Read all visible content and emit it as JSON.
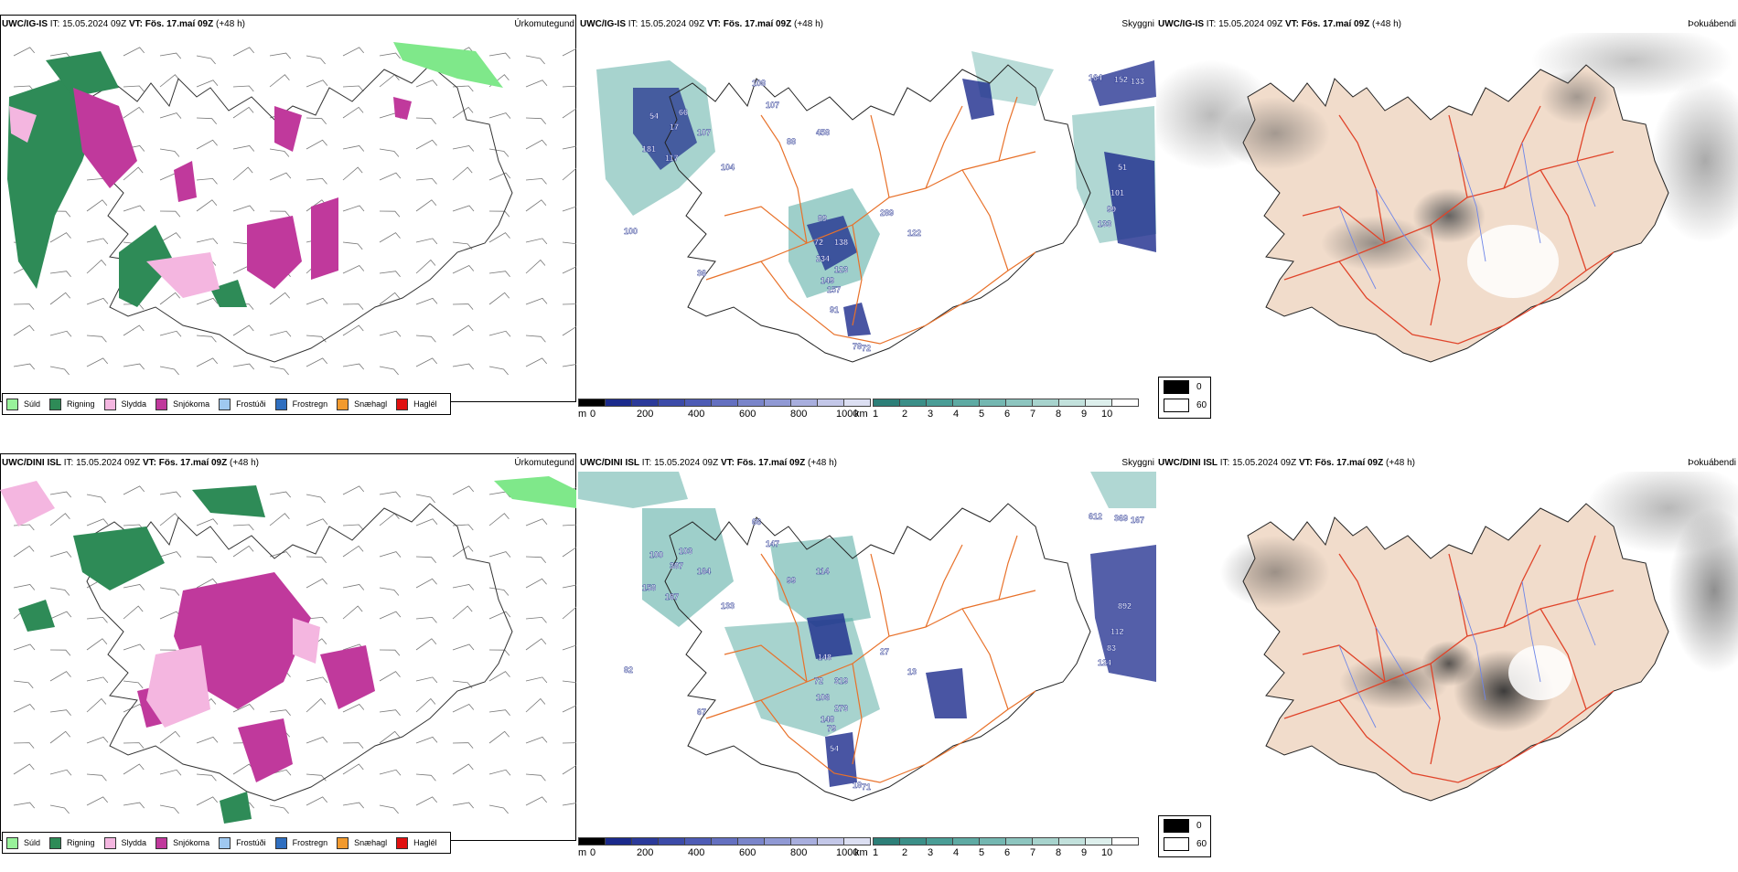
{
  "rows": [
    {
      "panels": {
        "precip": {
          "model": "UWC/IG-IS",
          "it_label": "IT:",
          "it_value": "15.05.2024 09Z",
          "vt_label": "VT:",
          "vt_value": "Fös. 17.maí 09Z",
          "lead": "(+48 h)",
          "title": "Úrkomutegund"
        },
        "clouds": {
          "model": "UWC/IG-IS",
          "it_label": "IT:",
          "it_value": "15.05.2024 09Z",
          "vt_label": "VT:",
          "vt_value": "Fös. 17.maí 09Z",
          "lead": "(+48 h)",
          "title": "Skyggni",
          "labels": [
            "108",
            "164",
            "152",
            "133",
            "107",
            "54",
            "66",
            "17",
            "107",
            "181",
            "117",
            "88",
            "458",
            "104",
            "51",
            "101",
            "99",
            "133",
            "89",
            "72",
            "289",
            "138",
            "234",
            "123",
            "149",
            "157",
            "91",
            "78",
            "72",
            "122",
            "100",
            "36"
          ]
        },
        "fog": {
          "model": "UWC/IG-IS",
          "it_label": "IT:",
          "it_value": "15.05.2024 09Z",
          "vt_label": "VT:",
          "vt_value": "Fös. 17.maí 09Z",
          "lead": "(+48 h)",
          "title": "Þokuábendi"
        }
      }
    },
    {
      "panels": {
        "precip": {
          "model": "UWC/DINI ISL",
          "it_label": "IT:",
          "it_value": "15.05.2024 09Z",
          "vt_label": "VT:",
          "vt_value": "Fös. 17.maí 09Z",
          "lead": "(+48 h)",
          "title": "Úrkomutegund"
        },
        "clouds": {
          "model": "UWC/DINI ISL",
          "it_label": "IT:",
          "it_value": "15.05.2024 09Z",
          "vt_label": "VT:",
          "vt_value": "Fös. 17.maí 09Z",
          "lead": "(+48 h)",
          "title": "Skyggni",
          "labels": [
            "66",
            "612",
            "369",
            "167",
            "147",
            "100",
            "103",
            "387",
            "164",
            "158",
            "187",
            "99",
            "114",
            "133",
            "892",
            "112",
            "83",
            "124",
            "148",
            "72",
            "27",
            "319",
            "106",
            "273",
            "148",
            "79",
            "54",
            "18",
            "71",
            "13",
            "82",
            "67"
          ]
        },
        "fog": {
          "model": "UWC/DINI ISL",
          "it_label": "IT:",
          "it_value": "15.05.2024 09Z",
          "vt_label": "VT:",
          "vt_value": "Fös. 17.maí 09Z",
          "lead": "(+48 h)",
          "title": "Þokuábendi"
        }
      }
    }
  ],
  "precip_legend": [
    {
      "label": "Súld",
      "color": "#98f29a"
    },
    {
      "label": "Rigning",
      "color": "#2e8b57"
    },
    {
      "label": "Slydda",
      "color": "#f4b6e0"
    },
    {
      "label": "Snjókoma",
      "color": "#c0399c"
    },
    {
      "label": "Frostúði",
      "color": "#9fc8f0"
    },
    {
      "label": "Frostregn",
      "color": "#2f6fc0"
    },
    {
      "label": "Snæhagl",
      "color": "#f29a2e"
    },
    {
      "label": "Haglél",
      "color": "#e01010"
    }
  ],
  "ceiling_bar": {
    "unit": "m",
    "ticks": [
      "0",
      "200",
      "400",
      "600",
      "800",
      "1000"
    ]
  },
  "visibility_bar": {
    "unit": "km",
    "ticks": [
      "1",
      "2",
      "3",
      "4",
      "5",
      "6",
      "7",
      "8",
      "9",
      "10"
    ]
  },
  "fog_legend": [
    {
      "label": "0",
      "color": "#000000"
    },
    {
      "label": "60",
      "color": "#ffffff"
    }
  ],
  "colors": {
    "land": "#f1dccb",
    "roads": "#e8712a",
    "rivers": "#6f86e8",
    "coast": "#222222",
    "cloud_low": "#1b2a8c",
    "cloud_high": "#4fa79e"
  }
}
